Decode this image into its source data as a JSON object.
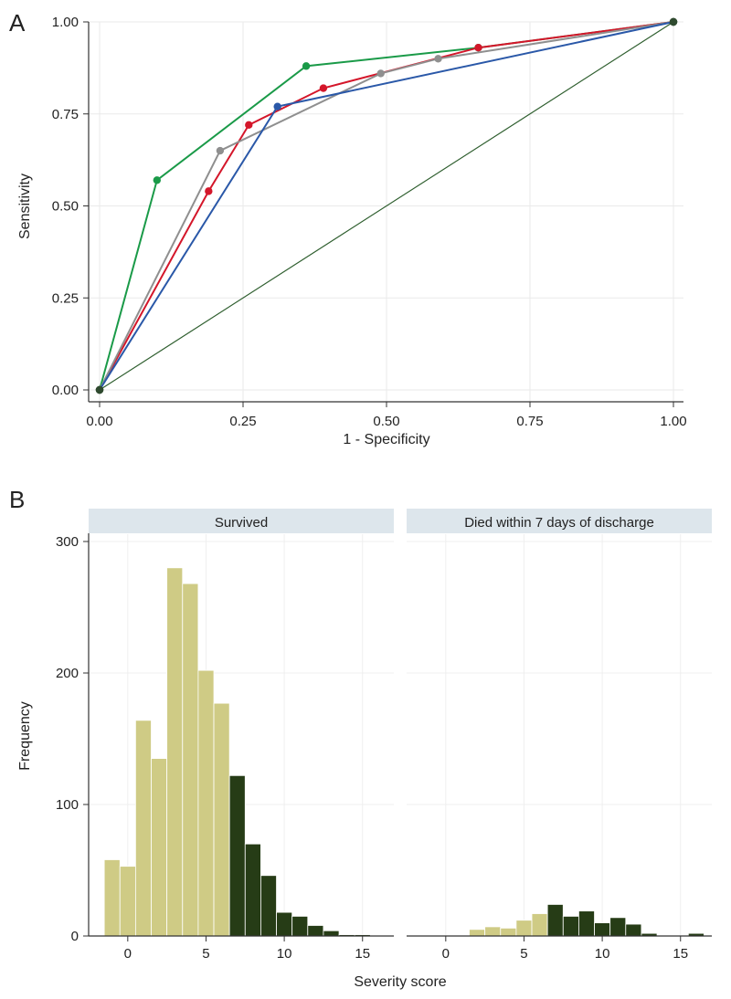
{
  "figure": {
    "panel_a_label": "A",
    "panel_b_label": "B"
  },
  "chart_data": [
    {
      "type": "line",
      "panel": "A",
      "title": "",
      "xlabel": "1 - Specificity",
      "ylabel": "Sensitivity",
      "xlim": [
        0,
        1
      ],
      "ylim": [
        0,
        1
      ],
      "xticks": [
        "0.00",
        "0.25",
        "0.50",
        "0.75",
        "1.00"
      ],
      "yticks": [
        "0.00",
        "0.25",
        "0.50",
        "0.75",
        "1.00"
      ],
      "grid": true,
      "reference_line": {
        "name": "Reference",
        "color": "#2e5e2e",
        "x": [
          0,
          1
        ],
        "y": [
          0,
          1
        ]
      },
      "series": [
        {
          "name": "green",
          "color": "#1a9a48",
          "x": [
            0,
            0.1,
            0.36,
            0.66,
            1
          ],
          "y": [
            0,
            0.57,
            0.88,
            0.93,
            1
          ]
        },
        {
          "name": "red",
          "color": "#d4162a",
          "x": [
            0,
            0.19,
            0.26,
            0.39,
            0.66,
            1
          ],
          "y": [
            0,
            0.54,
            0.72,
            0.82,
            0.93,
            1
          ]
        },
        {
          "name": "gray",
          "color": "#8f8f8f",
          "x": [
            0,
            0.21,
            0.49,
            0.59,
            1
          ],
          "y": [
            0,
            0.65,
            0.86,
            0.9,
            1
          ]
        },
        {
          "name": "blue",
          "color": "#2a58a8",
          "x": [
            0,
            0.31,
            1
          ],
          "y": [
            0,
            0.77,
            1
          ]
        }
      ]
    },
    {
      "type": "bar",
      "panel": "B",
      "xlabel": "Severity score",
      "ylabel": "Frequency",
      "bin_width": 1,
      "xlim": [
        -2.5,
        17
      ],
      "ylim": [
        0,
        300
      ],
      "xticks": [
        "0",
        "5",
        "10",
        "15"
      ],
      "yticks": [
        "0",
        "100",
        "200",
        "300"
      ],
      "threshold": 6.5,
      "colors": {
        "below_threshold": "#cfcb85",
        "above_threshold": "#263c16",
        "strip_bg": "#dde6ec"
      },
      "panels": [
        {
          "label": "Survived",
          "bin_starts": [
            -1.5,
            -0.5,
            0.5,
            1.5,
            2.5,
            3.5,
            4.5,
            5.5,
            6.5,
            7.5,
            8.5,
            9.5,
            10.5,
            11.5,
            12.5,
            13.5,
            14.5,
            15.5
          ],
          "values": [
            58,
            53,
            164,
            135,
            280,
            268,
            202,
            177,
            122,
            70,
            46,
            18,
            15,
            8,
            4,
            1,
            1,
            0
          ]
        },
        {
          "label": "Died within 7 days of discharge",
          "bin_starts": [
            1.5,
            2.5,
            3.5,
            4.5,
            5.5,
            6.5,
            7.5,
            8.5,
            9.5,
            10.5,
            11.5,
            12.5,
            13.5,
            14.5,
            15.5
          ],
          "values": [
            5,
            7,
            6,
            12,
            17,
            24,
            15,
            19,
            10,
            14,
            9,
            2,
            0,
            0,
            2
          ]
        }
      ]
    }
  ]
}
